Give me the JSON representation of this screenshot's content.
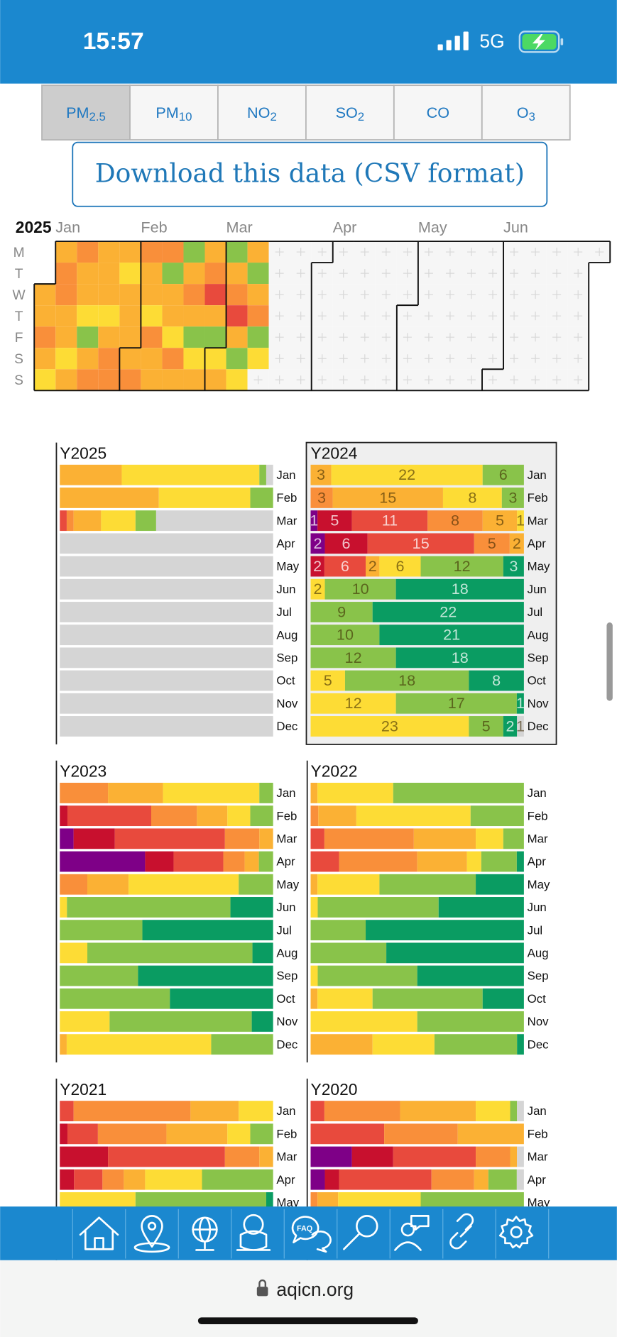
{
  "status": {
    "time": "15:57",
    "network": "5G"
  },
  "tabs": [
    {
      "label": "PM",
      "sub": "2.5"
    },
    {
      "label": "PM",
      "sub": "10"
    },
    {
      "label": "NO",
      "sub": "2"
    },
    {
      "label": "SO",
      "sub": "2"
    },
    {
      "label": "CO"
    },
    {
      "label": "O",
      "sub": "3"
    }
  ],
  "selected_tab": 0,
  "download": "Download this data (CSV format)",
  "level_colors": [
    "#7e0087",
    "#c8102e",
    "#e84a3d",
    "#f98f3a",
    "#fbb134",
    "#fddc35",
    "#89c34a",
    "#0a9c62",
    "#d5d5d5"
  ],
  "calendar": {
    "year": "2025",
    "months": [
      "Jan",
      "Feb",
      "Mar",
      "Apr",
      "May",
      "Jun"
    ],
    "weekdays": [
      "M",
      "T",
      "W",
      "T",
      "F",
      "S",
      "S"
    ],
    "days": [
      4,
      4,
      3,
      4,
      5,
      4,
      3,
      3,
      4,
      4,
      5,
      4,
      3,
      4,
      4,
      5,
      6,
      4,
      3,
      4,
      4,
      4,
      5,
      4,
      3,
      3,
      4,
      5,
      4,
      4,
      4,
      4,
      3,
      3,
      4,
      4,
      5,
      3,
      4,
      4,
      3,
      6,
      4,
      4,
      5,
      3,
      4,
      6,
      4,
      3,
      4,
      6,
      5,
      4,
      4,
      3,
      2,
      4,
      6,
      5,
      4,
      6,
      4,
      3,
      2,
      4,
      6,
      5,
      4,
      6,
      4,
      3,
      6,
      5
    ]
  },
  "months": [
    "Jan",
    "Feb",
    "Mar",
    "Apr",
    "May",
    "Jun",
    "Jul",
    "Aug",
    "Sep",
    "Oct",
    "Nov",
    "Dec"
  ],
  "selected_year": 1,
  "years": [
    {
      "name": "Y2025",
      "show_counts": false,
      "months": [
        [
          0,
          0,
          0,
          0,
          9,
          20,
          1,
          0,
          1
        ],
        [
          0,
          0,
          0,
          0,
          13,
          12,
          3,
          0,
          0
        ],
        [
          0,
          0,
          1,
          1,
          4,
          5,
          3,
          0,
          17
        ],
        [
          0,
          0,
          0,
          0,
          0,
          0,
          0,
          0,
          30
        ],
        [
          0,
          0,
          0,
          0,
          0,
          0,
          0,
          0,
          31
        ],
        [
          0,
          0,
          0,
          0,
          0,
          0,
          0,
          0,
          30
        ],
        [
          0,
          0,
          0,
          0,
          0,
          0,
          0,
          0,
          31
        ],
        [
          0,
          0,
          0,
          0,
          0,
          0,
          0,
          0,
          31
        ],
        [
          0,
          0,
          0,
          0,
          0,
          0,
          0,
          0,
          30
        ],
        [
          0,
          0,
          0,
          0,
          0,
          0,
          0,
          0,
          31
        ],
        [
          0,
          0,
          0,
          0,
          0,
          0,
          0,
          0,
          30
        ],
        [
          0,
          0,
          0,
          0,
          0,
          0,
          0,
          0,
          31
        ]
      ]
    },
    {
      "name": "Y2024",
      "show_counts": true,
      "months": [
        [
          0,
          0,
          0,
          0,
          3,
          22,
          6,
          0,
          0
        ],
        [
          0,
          0,
          0,
          3,
          15,
          8,
          3,
          0,
          0
        ],
        [
          1,
          5,
          11,
          8,
          5,
          1,
          0,
          0,
          0
        ],
        [
          2,
          6,
          15,
          5,
          2,
          0,
          0,
          0,
          0
        ],
        [
          0,
          2,
          6,
          0,
          2,
          6,
          12,
          3,
          0
        ],
        [
          0,
          0,
          0,
          0,
          0,
          2,
          10,
          18,
          0
        ],
        [
          0,
          0,
          0,
          0,
          0,
          0,
          9,
          22,
          0
        ],
        [
          0,
          0,
          0,
          0,
          0,
          0,
          10,
          21,
          0
        ],
        [
          0,
          0,
          0,
          0,
          0,
          0,
          12,
          18,
          0
        ],
        [
          0,
          0,
          0,
          0,
          0,
          5,
          18,
          8,
          0
        ],
        [
          0,
          0,
          0,
          0,
          0,
          12,
          17,
          1,
          0
        ],
        [
          0,
          0,
          0,
          0,
          0,
          23,
          5,
          2,
          1
        ]
      ]
    },
    {
      "name": "Y2023",
      "show_counts": false,
      "months": [
        [
          0,
          0,
          0,
          7,
          8,
          14,
          2,
          0,
          0
        ],
        [
          0,
          1,
          11,
          6,
          4,
          3,
          3,
          0,
          0
        ],
        [
          2,
          6,
          16,
          5,
          2,
          0,
          0,
          0,
          0
        ],
        [
          12,
          4,
          7,
          3,
          2,
          0,
          2,
          0,
          0
        ],
        [
          0,
          0,
          0,
          4,
          6,
          16,
          5,
          0,
          0
        ],
        [
          0,
          0,
          0,
          0,
          0,
          1,
          23,
          6,
          0
        ],
        [
          0,
          0,
          0,
          0,
          0,
          0,
          12,
          19,
          0
        ],
        [
          0,
          0,
          0,
          0,
          0,
          4,
          24,
          3,
          0
        ],
        [
          0,
          0,
          0,
          0,
          0,
          0,
          11,
          19,
          0
        ],
        [
          0,
          0,
          0,
          0,
          0,
          0,
          16,
          15,
          0
        ],
        [
          0,
          0,
          0,
          0,
          0,
          7,
          20,
          3,
          0
        ],
        [
          0,
          0,
          0,
          0,
          1,
          21,
          9,
          0,
          0
        ]
      ]
    },
    {
      "name": "Y2022",
      "show_counts": false,
      "months": [
        [
          0,
          0,
          0,
          0,
          1,
          11,
          19,
          0,
          0
        ],
        [
          0,
          0,
          0,
          1,
          5,
          15,
          7,
          0,
          0
        ],
        [
          0,
          0,
          2,
          13,
          9,
          4,
          3,
          0,
          0
        ],
        [
          0,
          0,
          4,
          11,
          7,
          2,
          5,
          1,
          0
        ],
        [
          0,
          0,
          0,
          0,
          1,
          9,
          14,
          7,
          0
        ],
        [
          0,
          0,
          0,
          0,
          0,
          1,
          17,
          12,
          0
        ],
        [
          0,
          0,
          0,
          0,
          0,
          0,
          8,
          23,
          0
        ],
        [
          0,
          0,
          0,
          0,
          0,
          0,
          11,
          20,
          0
        ],
        [
          0,
          0,
          0,
          0,
          0,
          1,
          14,
          15,
          0
        ],
        [
          0,
          0,
          0,
          0,
          1,
          8,
          16,
          6,
          0
        ],
        [
          0,
          0,
          0,
          0,
          0,
          15,
          15,
          0,
          0
        ],
        [
          0,
          0,
          0,
          0,
          9,
          9,
          12,
          1,
          0
        ]
      ]
    },
    {
      "name": "Y2021",
      "show_counts": false,
      "months": [
        [
          0,
          0,
          2,
          17,
          7,
          5,
          0,
          0,
          0
        ],
        [
          0,
          1,
          4,
          9,
          8,
          3,
          3,
          0,
          0
        ],
        [
          0,
          7,
          17,
          5,
          2,
          0,
          0,
          0,
          0
        ],
        [
          0,
          2,
          4,
          3,
          3,
          8,
          10,
          0,
          0
        ],
        [
          0,
          0,
          0,
          0,
          0,
          11,
          19,
          1,
          0
        ]
      ]
    },
    {
      "name": "Y2020",
      "show_counts": false,
      "months": [
        [
          0,
          0,
          2,
          11,
          11,
          5,
          1,
          0,
          1
        ],
        [
          0,
          0,
          10,
          10,
          9,
          0,
          0,
          0,
          0
        ],
        [
          6,
          6,
          12,
          5,
          1,
          0,
          0,
          0,
          1
        ],
        [
          2,
          2,
          13,
          6,
          2,
          0,
          4,
          0,
          1
        ],
        [
          0,
          0,
          0,
          1,
          3,
          12,
          15,
          0,
          0
        ]
      ]
    }
  ],
  "nav_faq": "FAQ",
  "url": "aqicn.org"
}
